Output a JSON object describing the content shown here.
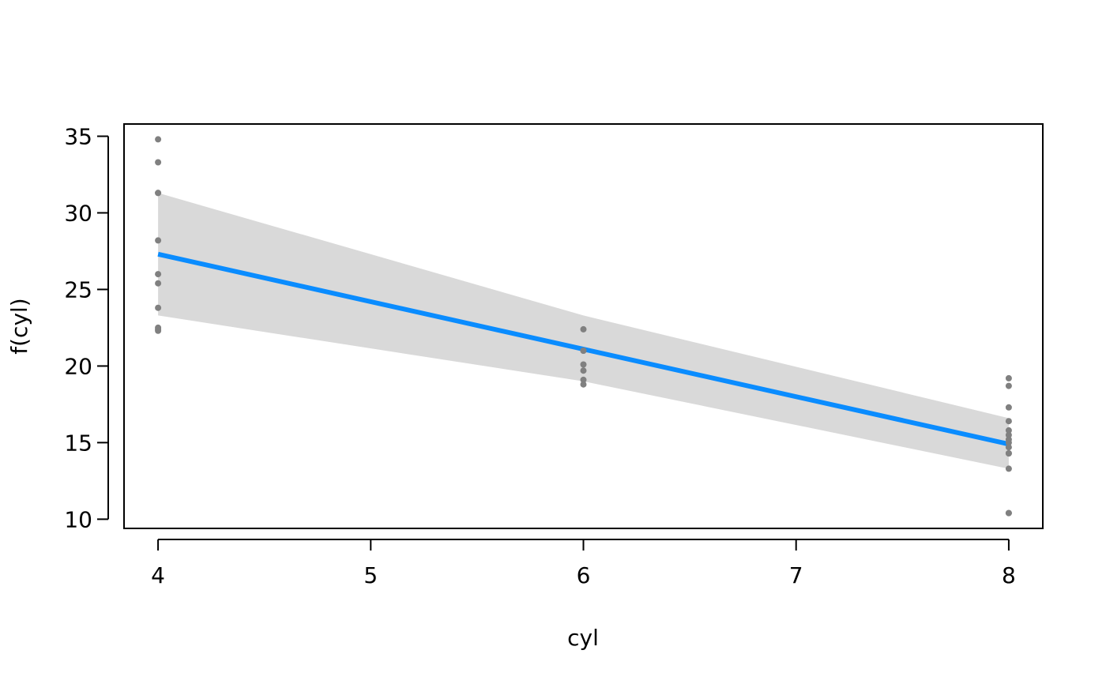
{
  "chart_data": {
    "type": "line",
    "title": "",
    "xlabel": "cyl",
    "ylabel": "f(cyl)",
    "xlim": [
      3.84,
      8.16
    ],
    "ylim": [
      9.4,
      35.8
    ],
    "x_ticks": [
      4,
      5,
      6,
      7,
      8
    ],
    "y_ticks": [
      10,
      15,
      20,
      25,
      30,
      35
    ],
    "grid": false,
    "legend": "none",
    "series": [
      {
        "kind": "fit-line",
        "color": "#0a8cff",
        "x": [
          4,
          6,
          8
        ],
        "values": [
          27.3,
          21.1,
          14.9
        ]
      }
    ],
    "confidence_band": {
      "color": "#d9d9d9",
      "x": [
        4,
        6,
        8
      ],
      "lower": [
        23.3,
        19.0,
        13.3
      ],
      "upper": [
        31.3,
        23.3,
        16.6
      ]
    },
    "points": {
      "color": "#808080",
      "x": [
        4,
        4,
        4,
        4,
        4,
        4,
        4,
        4,
        4,
        4,
        4,
        6,
        6,
        6,
        6,
        6,
        6,
        6,
        8,
        8,
        8,
        8,
        8,
        8,
        8,
        8,
        8,
        8,
        8,
        8,
        8,
        8
      ],
      "y": [
        34.8,
        33.3,
        31.3,
        31.3,
        28.2,
        26.0,
        25.4,
        23.8,
        22.4,
        22.3,
        22.5,
        22.4,
        21.0,
        21.0,
        20.1,
        19.7,
        19.1,
        18.8,
        19.2,
        18.7,
        17.3,
        16.4,
        15.8,
        15.5,
        15.2,
        15.0,
        14.7,
        14.3,
        14.3,
        13.3,
        10.4,
        10.4
      ]
    }
  }
}
